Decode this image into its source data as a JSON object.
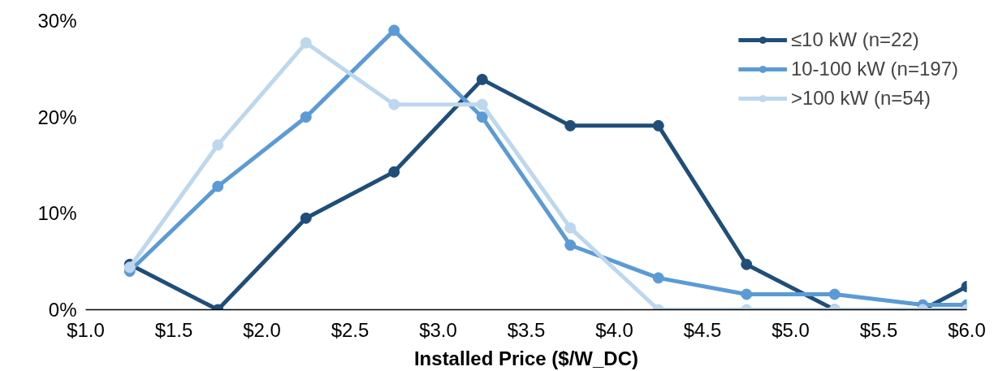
{
  "chart_data": {
    "type": "line",
    "xlabel": "Installed Price ($/W_DC)",
    "x": [
      1.25,
      1.75,
      2.25,
      2.75,
      3.25,
      3.75,
      4.25,
      4.75,
      5.25,
      5.75,
      6.0
    ],
    "series": [
      {
        "name": "≤10 kW (n=22)",
        "color": "#1f4e79",
        "values": [
          4.7,
          0,
          9.5,
          14.3,
          23.9,
          19.1,
          19.1,
          4.7,
          0,
          0,
          2.4
        ]
      },
      {
        "name": "10-100 kW (n=197)",
        "color": "#5b9bd5",
        "values": [
          4.0,
          12.8,
          20.0,
          29.0,
          20.0,
          6.7,
          3.3,
          1.6,
          1.6,
          0.5,
          0.5
        ]
      },
      {
        "name": ">100 kW (n=54)",
        "color": "#bdd7ee",
        "values": [
          4.4,
          17.1,
          27.7,
          21.3,
          21.3,
          8.5,
          0,
          0,
          0,
          0,
          0
        ]
      }
    ],
    "xlim": [
      1.0,
      6.0
    ],
    "xticks": [
      {
        "value": 1.0,
        "label": "$1.0"
      },
      {
        "value": 1.5,
        "label": "$1.5"
      },
      {
        "value": 2.0,
        "label": "$2.0"
      },
      {
        "value": 2.5,
        "label": "$2.5"
      },
      {
        "value": 3.0,
        "label": "$3.0"
      },
      {
        "value": 3.5,
        "label": "$3.5"
      },
      {
        "value": 4.0,
        "label": "$4.0"
      },
      {
        "value": 4.5,
        "label": "$4.5"
      },
      {
        "value": 5.0,
        "label": "$5.0"
      },
      {
        "value": 5.5,
        "label": "$5.5"
      },
      {
        "value": 6.0,
        "label": "$6.0"
      }
    ],
    "ylim": [
      0,
      30
    ],
    "yticks": [
      {
        "value": 0,
        "label": "0%"
      },
      {
        "value": 10,
        "label": "10%"
      },
      {
        "value": 20,
        "label": "20%"
      },
      {
        "value": 30,
        "label": "30%"
      }
    ],
    "grid": false,
    "legend": "top right",
    "marker": "circle",
    "line_style": "solid"
  }
}
